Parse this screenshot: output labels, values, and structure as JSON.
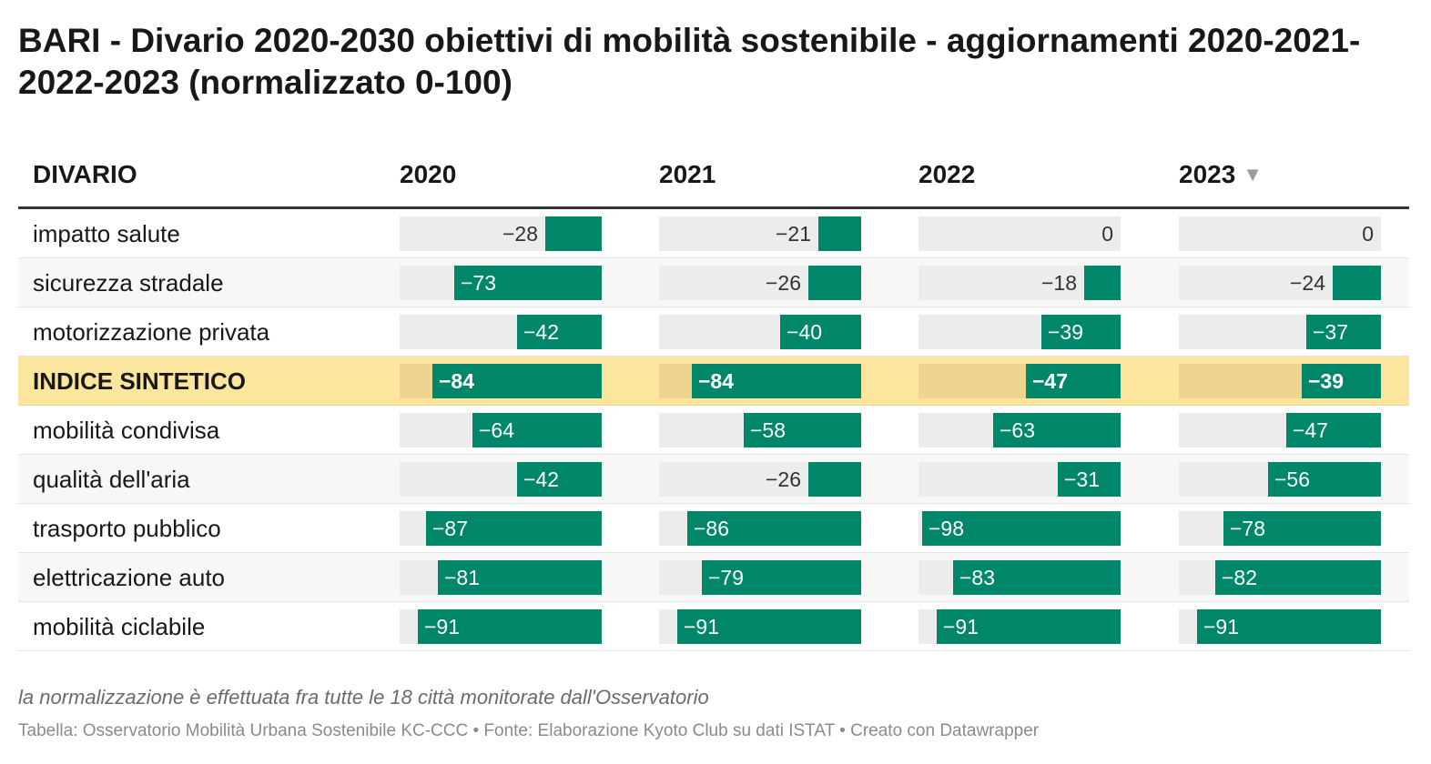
{
  "chart_data": {
    "type": "table",
    "title": "BARI - Divario 2020-2030 obiettivi di mobilità sostenibile - aggiornamenti 2020-2021-2022-2023 (normalizzato 0-100)",
    "row_header": "DIVARIO",
    "columns": [
      "2020",
      "2021",
      "2022",
      "2023"
    ],
    "sorted_column": "2023",
    "sort_icon": "sort-descending-icon",
    "scale": [
      -100,
      0
    ],
    "bar_color": "#00876a",
    "highlight_color": "#fce59d",
    "rows": [
      {
        "label": "impatto salute",
        "values": [
          -28,
          -21,
          0,
          0
        ],
        "highlight": false
      },
      {
        "label": "sicurezza stradale",
        "values": [
          -73,
          -26,
          -18,
          -24
        ],
        "highlight": false
      },
      {
        "label": "motorizzazione privata",
        "values": [
          -42,
          -40,
          -39,
          -37
        ],
        "highlight": false
      },
      {
        "label": "INDICE SINTETICO",
        "values": [
          -84,
          -84,
          -47,
          -39
        ],
        "highlight": true
      },
      {
        "label": "mobilità condivisa",
        "values": [
          -64,
          -58,
          -63,
          -47
        ],
        "highlight": false
      },
      {
        "label": "qualità dell'aria",
        "values": [
          -42,
          -26,
          -31,
          -56
        ],
        "highlight": false
      },
      {
        "label": "trasporto pubblico",
        "values": [
          -87,
          -86,
          -98,
          -78
        ],
        "highlight": false
      },
      {
        "label": "elettricazione auto",
        "values": [
          -81,
          -79,
          -83,
          -82
        ],
        "highlight": false
      },
      {
        "label": "mobilità ciclabile",
        "values": [
          -91,
          -91,
          -91,
          -91
        ],
        "highlight": false
      }
    ],
    "notes": "la normalizzazione è effettuata fra tutte le 18 città monitorate dall'Osservatorio",
    "source": "Tabella: Osservatorio Mobilità Urbana Sostenibile KC-CCC • Fonte: Elaborazione Kyoto Club su dati ISTAT • Creato con Datawrapper"
  }
}
